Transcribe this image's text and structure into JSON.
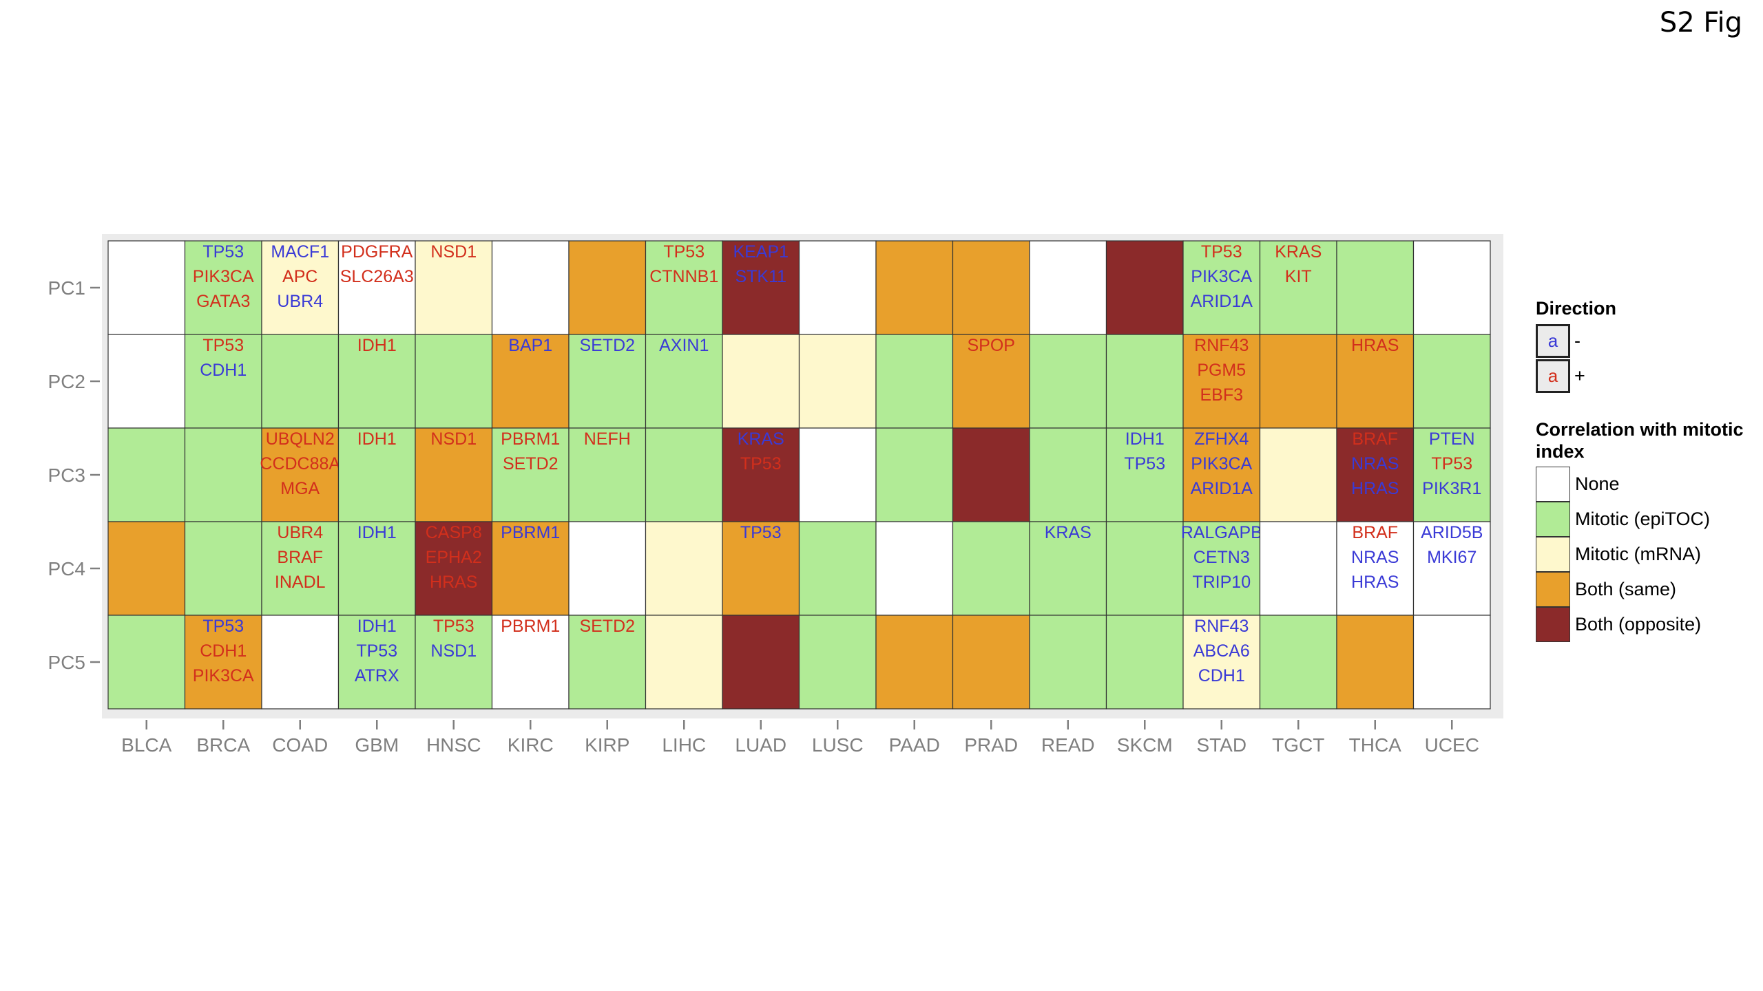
{
  "figure_label": "S2 Fig",
  "colors": {
    "None": "#ffffff",
    "Mitotic (epiTOC)": "#b1eb96",
    "Mitotic (mRNA)": "#fef8cd",
    "Both (same)": "#e8a02c",
    "Both (opposite)": "#8b2a2a",
    "text_neg": "#3a3ad6",
    "text_pos": "#d22f1c"
  },
  "legend": {
    "direction_title": "Direction",
    "direction_items": [
      {
        "glyph": "a",
        "symbol": "-",
        "sign": "-"
      },
      {
        "glyph": "a",
        "symbol": "+",
        "sign": "+"
      }
    ],
    "correlation_title": "Correlation with mitotic index",
    "correlation_items": [
      "None",
      "Mitotic (epiTOC)",
      "Mitotic (mRNA)",
      "Both (same)",
      "Both (opposite)"
    ]
  },
  "chart_data": {
    "type": "heatmap",
    "title": "",
    "xlabel": "",
    "ylabel": "",
    "x": [
      "BLCA",
      "BRCA",
      "COAD",
      "GBM",
      "HNSC",
      "KIRC",
      "KIRP",
      "LIHC",
      "LUAD",
      "LUSC",
      "PAAD",
      "PRAD",
      "READ",
      "SKCM",
      "STAD",
      "TGCT",
      "THCA",
      "UCEC"
    ],
    "y": [
      "PC1",
      "PC2",
      "PC3",
      "PC4",
      "PC5"
    ],
    "cells": [
      [
        {
          "cat": "None",
          "genes": []
        },
        {
          "cat": "Mitotic (epiTOC)",
          "genes": [
            {
              "g": "TP53",
              "d": "-"
            },
            {
              "g": "PIK3CA",
              "d": "+"
            },
            {
              "g": "GATA3",
              "d": "+"
            }
          ]
        },
        {
          "cat": "Mitotic (mRNA)",
          "genes": [
            {
              "g": "MACF1",
              "d": "-"
            },
            {
              "g": "APC",
              "d": "+"
            },
            {
              "g": "UBR4",
              "d": "-"
            }
          ]
        },
        {
          "cat": "None",
          "genes": [
            {
              "g": "PDGFRA",
              "d": "+"
            },
            {
              "g": "SLC26A3",
              "d": "+"
            }
          ]
        },
        {
          "cat": "Mitotic (mRNA)",
          "genes": [
            {
              "g": "NSD1",
              "d": "+"
            }
          ]
        },
        {
          "cat": "None",
          "genes": []
        },
        {
          "cat": "Both (same)",
          "genes": []
        },
        {
          "cat": "Mitotic (epiTOC)",
          "genes": [
            {
              "g": "TP53",
              "d": "+"
            },
            {
              "g": "CTNNB1",
              "d": "+"
            }
          ]
        },
        {
          "cat": "Both (opposite)",
          "genes": [
            {
              "g": "KEAP1",
              "d": "-"
            },
            {
              "g": "STK11",
              "d": "-"
            }
          ]
        },
        {
          "cat": "None",
          "genes": []
        },
        {
          "cat": "Both (same)",
          "genes": []
        },
        {
          "cat": "Both (same)",
          "genes": []
        },
        {
          "cat": "None",
          "genes": []
        },
        {
          "cat": "Both (opposite)",
          "genes": []
        },
        {
          "cat": "Mitotic (epiTOC)",
          "genes": [
            {
              "g": "TP53",
              "d": "+"
            },
            {
              "g": "PIK3CA",
              "d": "-"
            },
            {
              "g": "ARID1A",
              "d": "-"
            }
          ]
        },
        {
          "cat": "Mitotic (epiTOC)",
          "genes": [
            {
              "g": "KRAS",
              "d": "+"
            },
            {
              "g": "KIT",
              "d": "+"
            }
          ]
        },
        {
          "cat": "Mitotic (epiTOC)",
          "genes": []
        },
        {
          "cat": "None",
          "genes": []
        }
      ],
      [
        {
          "cat": "None",
          "genes": []
        },
        {
          "cat": "Mitotic (epiTOC)",
          "genes": [
            {
              "g": "TP53",
              "d": "+"
            },
            {
              "g": "CDH1",
              "d": "-"
            }
          ]
        },
        {
          "cat": "Mitotic (epiTOC)",
          "genes": []
        },
        {
          "cat": "Mitotic (epiTOC)",
          "genes": [
            {
              "g": "IDH1",
              "d": "+"
            }
          ]
        },
        {
          "cat": "Mitotic (epiTOC)",
          "genes": []
        },
        {
          "cat": "Both (same)",
          "genes": [
            {
              "g": "BAP1",
              "d": "-"
            }
          ]
        },
        {
          "cat": "Mitotic (epiTOC)",
          "genes": [
            {
              "g": "SETD2",
              "d": "-"
            }
          ]
        },
        {
          "cat": "Mitotic (epiTOC)",
          "genes": [
            {
              "g": "AXIN1",
              "d": "-"
            }
          ]
        },
        {
          "cat": "Mitotic (mRNA)",
          "genes": []
        },
        {
          "cat": "Mitotic (mRNA)",
          "genes": []
        },
        {
          "cat": "Mitotic (epiTOC)",
          "genes": []
        },
        {
          "cat": "Both (same)",
          "genes": [
            {
              "g": "SPOP",
              "d": "+"
            }
          ]
        },
        {
          "cat": "Mitotic (epiTOC)",
          "genes": []
        },
        {
          "cat": "Mitotic (epiTOC)",
          "genes": []
        },
        {
          "cat": "Both (same)",
          "genes": [
            {
              "g": "RNF43",
              "d": "+"
            },
            {
              "g": "PGM5",
              "d": "+"
            },
            {
              "g": "EBF3",
              "d": "+"
            }
          ]
        },
        {
          "cat": "Both (same)",
          "genes": []
        },
        {
          "cat": "Both (same)",
          "genes": [
            {
              "g": "HRAS",
              "d": "+"
            }
          ]
        },
        {
          "cat": "Mitotic (epiTOC)",
          "genes": []
        }
      ],
      [
        {
          "cat": "Mitotic (epiTOC)",
          "genes": []
        },
        {
          "cat": "Mitotic (epiTOC)",
          "genes": []
        },
        {
          "cat": "Both (same)",
          "genes": [
            {
              "g": "UBQLN2",
              "d": "+"
            },
            {
              "g": "CCDC88A",
              "d": "+"
            },
            {
              "g": "MGA",
              "d": "+"
            }
          ]
        },
        {
          "cat": "Mitotic (epiTOC)",
          "genes": [
            {
              "g": "IDH1",
              "d": "+"
            }
          ]
        },
        {
          "cat": "Both (same)",
          "genes": [
            {
              "g": "NSD1",
              "d": "+"
            }
          ]
        },
        {
          "cat": "Mitotic (epiTOC)",
          "genes": [
            {
              "g": "PBRM1",
              "d": "+"
            },
            {
              "g": "SETD2",
              "d": "+"
            }
          ]
        },
        {
          "cat": "Mitotic (epiTOC)",
          "genes": [
            {
              "g": "NEFH",
              "d": "+"
            }
          ]
        },
        {
          "cat": "Mitotic (epiTOC)",
          "genes": []
        },
        {
          "cat": "Both (opposite)",
          "genes": [
            {
              "g": "KRAS",
              "d": "-"
            },
            {
              "g": "TP53",
              "d": "+"
            }
          ]
        },
        {
          "cat": "None",
          "genes": []
        },
        {
          "cat": "Mitotic (epiTOC)",
          "genes": []
        },
        {
          "cat": "Both (opposite)",
          "genes": []
        },
        {
          "cat": "Mitotic (epiTOC)",
          "genes": []
        },
        {
          "cat": "Mitotic (epiTOC)",
          "genes": [
            {
              "g": "IDH1",
              "d": "-"
            },
            {
              "g": "TP53",
              "d": "-"
            }
          ]
        },
        {
          "cat": "Both (same)",
          "genes": [
            {
              "g": "ZFHX4",
              "d": "-"
            },
            {
              "g": "PIK3CA",
              "d": "-"
            },
            {
              "g": "ARID1A",
              "d": "-"
            }
          ]
        },
        {
          "cat": "Mitotic (mRNA)",
          "genes": []
        },
        {
          "cat": "Both (opposite)",
          "genes": [
            {
              "g": "BRAF",
              "d": "+"
            },
            {
              "g": "NRAS",
              "d": "-"
            },
            {
              "g": "HRAS",
              "d": "-"
            }
          ]
        },
        {
          "cat": "Mitotic (epiTOC)",
          "genes": [
            {
              "g": "PTEN",
              "d": "-"
            },
            {
              "g": "TP53",
              "d": "+"
            },
            {
              "g": "PIK3R1",
              "d": "-"
            }
          ]
        }
      ],
      [
        {
          "cat": "Both (same)",
          "genes": []
        },
        {
          "cat": "Mitotic (epiTOC)",
          "genes": []
        },
        {
          "cat": "Mitotic (epiTOC)",
          "genes": [
            {
              "g": "UBR4",
              "d": "+"
            },
            {
              "g": "BRAF",
              "d": "+"
            },
            {
              "g": "INADL",
              "d": "+"
            }
          ]
        },
        {
          "cat": "Mitotic (epiTOC)",
          "genes": [
            {
              "g": "IDH1",
              "d": "-"
            }
          ]
        },
        {
          "cat": "Both (opposite)",
          "genes": [
            {
              "g": "CASP8",
              "d": "+"
            },
            {
              "g": "EPHA2",
              "d": "+"
            },
            {
              "g": "HRAS",
              "d": "+"
            }
          ]
        },
        {
          "cat": "Both (same)",
          "genes": [
            {
              "g": "PBRM1",
              "d": "-"
            }
          ]
        },
        {
          "cat": "None",
          "genes": []
        },
        {
          "cat": "Mitotic (mRNA)",
          "genes": []
        },
        {
          "cat": "Both (same)",
          "genes": [
            {
              "g": "TP53",
              "d": "-"
            }
          ]
        },
        {
          "cat": "Mitotic (epiTOC)",
          "genes": []
        },
        {
          "cat": "None",
          "genes": []
        },
        {
          "cat": "Mitotic (epiTOC)",
          "genes": []
        },
        {
          "cat": "Mitotic (epiTOC)",
          "genes": [
            {
              "g": "KRAS",
              "d": "-"
            }
          ]
        },
        {
          "cat": "Mitotic (epiTOC)",
          "genes": []
        },
        {
          "cat": "Mitotic (epiTOC)",
          "genes": [
            {
              "g": "RALGAPB",
              "d": "-"
            },
            {
              "g": "CETN3",
              "d": "-"
            },
            {
              "g": "TRIP10",
              "d": "-"
            }
          ]
        },
        {
          "cat": "None",
          "genes": []
        },
        {
          "cat": "None",
          "genes": [
            {
              "g": "BRAF",
              "d": "+"
            },
            {
              "g": "NRAS",
              "d": "-"
            },
            {
              "g": "HRAS",
              "d": "-"
            }
          ]
        },
        {
          "cat": "None",
          "genes": [
            {
              "g": "ARID5B",
              "d": "-"
            },
            {
              "g": "MKI67",
              "d": "-"
            }
          ]
        }
      ],
      [
        {
          "cat": "Mitotic (epiTOC)",
          "genes": []
        },
        {
          "cat": "Both (same)",
          "genes": [
            {
              "g": "TP53",
              "d": "-"
            },
            {
              "g": "CDH1",
              "d": "+"
            },
            {
              "g": "PIK3CA",
              "d": "+"
            }
          ]
        },
        {
          "cat": "None",
          "genes": []
        },
        {
          "cat": "Mitotic (epiTOC)",
          "genes": [
            {
              "g": "IDH1",
              "d": "-"
            },
            {
              "g": "TP53",
              "d": "-"
            },
            {
              "g": "ATRX",
              "d": "-"
            }
          ]
        },
        {
          "cat": "Mitotic (epiTOC)",
          "genes": [
            {
              "g": "TP53",
              "d": "+"
            },
            {
              "g": "NSD1",
              "d": "-"
            }
          ]
        },
        {
          "cat": "None",
          "genes": [
            {
              "g": "PBRM1",
              "d": "+"
            }
          ]
        },
        {
          "cat": "Mitotic (epiTOC)",
          "genes": [
            {
              "g": "SETD2",
              "d": "+"
            }
          ]
        },
        {
          "cat": "Mitotic (mRNA)",
          "genes": []
        },
        {
          "cat": "Both (opposite)",
          "genes": []
        },
        {
          "cat": "Mitotic (epiTOC)",
          "genes": []
        },
        {
          "cat": "Both (same)",
          "genes": []
        },
        {
          "cat": "Both (same)",
          "genes": []
        },
        {
          "cat": "Mitotic (epiTOC)",
          "genes": []
        },
        {
          "cat": "Mitotic (epiTOC)",
          "genes": []
        },
        {
          "cat": "Mitotic (mRNA)",
          "genes": [
            {
              "g": "RNF43",
              "d": "-"
            },
            {
              "g": "ABCA6",
              "d": "-"
            },
            {
              "g": "CDH1",
              "d": "-"
            }
          ]
        },
        {
          "cat": "Mitotic (epiTOC)",
          "genes": []
        },
        {
          "cat": "Both (same)",
          "genes": []
        },
        {
          "cat": "None",
          "genes": []
        }
      ]
    ]
  }
}
